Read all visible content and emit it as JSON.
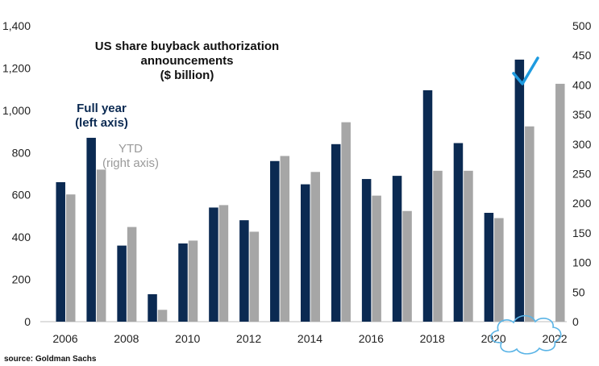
{
  "chart_data": {
    "type": "bar",
    "title_lines": [
      "US share buyback authorization",
      "announcements",
      "($ billion)"
    ],
    "source": "source: Goldman Sachs",
    "years": [
      "2006",
      "2007",
      "2008",
      "2009",
      "2010",
      "2011",
      "2012",
      "2013",
      "2014",
      "2015",
      "2016",
      "2017",
      "2018",
      "2019",
      "2020",
      "2021",
      "2022"
    ],
    "x_tick_labels": [
      "2006",
      "2008",
      "2010",
      "2012",
      "2014",
      "2016",
      "2018",
      "2020",
      "2022"
    ],
    "left_axis": {
      "min": 0,
      "max": 1400,
      "ticks": [
        "0",
        "200",
        "400",
        "600",
        "800",
        "1,000",
        "1,200",
        "1,400"
      ]
    },
    "right_axis": {
      "min": 0,
      "max": 500,
      "ticks": [
        "0",
        "50",
        "100",
        "150",
        "200",
        "250",
        "300",
        "350",
        "400",
        "450",
        "500"
      ]
    },
    "series": [
      {
        "name_lines": [
          "Full year",
          "(left axis)"
        ],
        "axis": "left",
        "color": "#0b2a52",
        "values": [
          660,
          870,
          360,
          130,
          370,
          540,
          480,
          760,
          650,
          840,
          675,
          690,
          1095,
          845,
          515,
          1240,
          null
        ]
      },
      {
        "name_lines": [
          "YTD",
          "(right axis)"
        ],
        "axis": "right",
        "color": "#a6a6a6",
        "values": [
          215,
          257,
          160,
          20,
          137,
          197,
          152,
          280,
          253,
          337,
          213,
          187,
          255,
          255,
          175,
          330,
          402
        ]
      }
    ],
    "highlight": {
      "year": "2022",
      "checkmark_color": "#1e9be0",
      "cloud_color": "#5ab4e6"
    },
    "grid": false
  }
}
